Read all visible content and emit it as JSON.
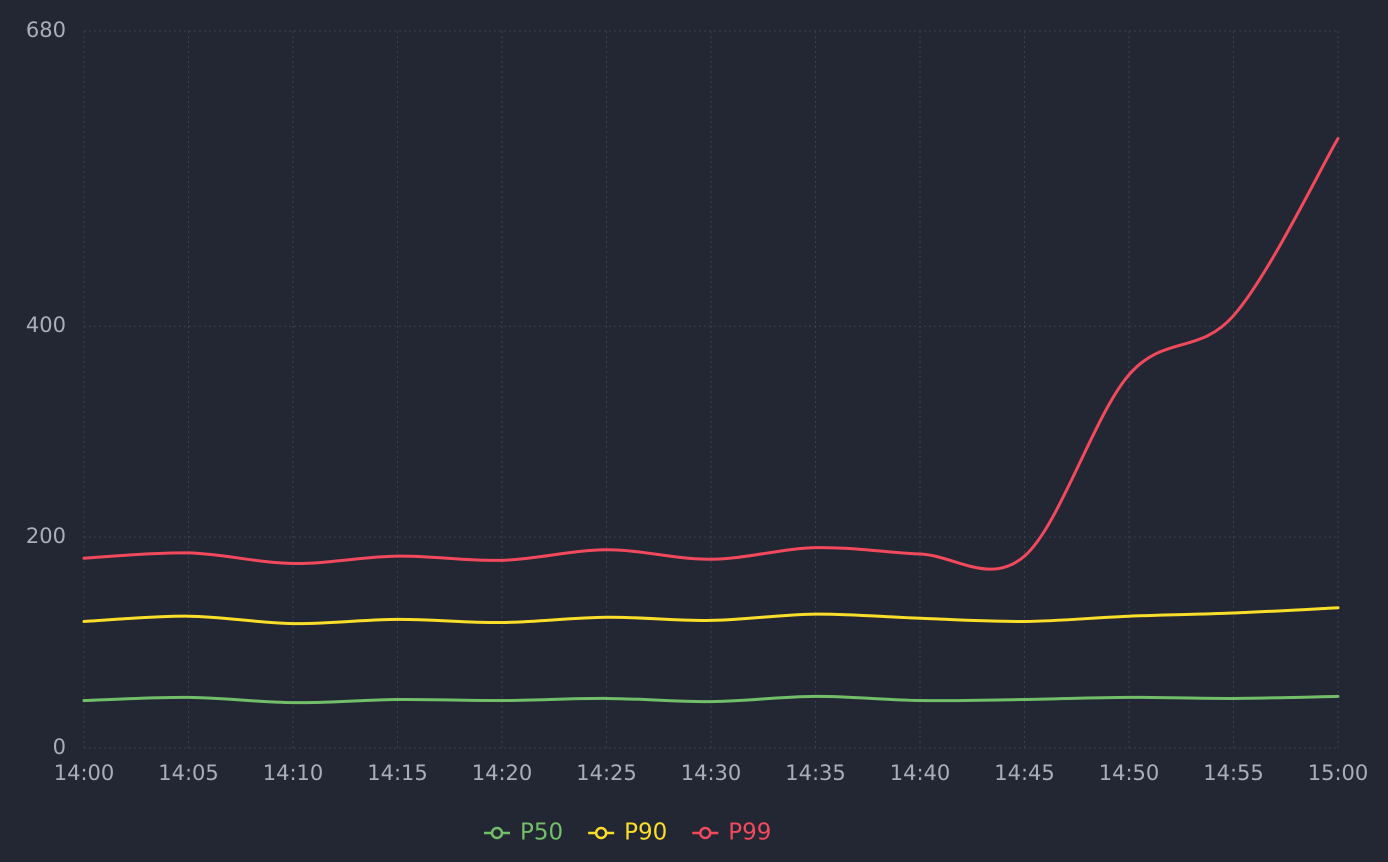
{
  "chart_data": {
    "type": "line",
    "categories": [
      "14:00",
      "14:05",
      "14:10",
      "14:15",
      "14:20",
      "14:25",
      "14:30",
      "14:35",
      "14:40",
      "14:45",
      "14:50",
      "14:55",
      "15:00"
    ],
    "series": [
      {
        "name": "P50",
        "color": "#73bf69",
        "values": [
          45,
          48,
          43,
          46,
          45,
          47,
          44,
          49,
          45,
          46,
          48,
          47,
          49
        ]
      },
      {
        "name": "P90",
        "color": "#fade2a",
        "values": [
          120,
          125,
          118,
          122,
          119,
          124,
          121,
          127,
          123,
          120,
          125,
          128,
          133
        ]
      },
      {
        "name": "P99",
        "color": "#f2495c",
        "values": [
          180,
          185,
          175,
          182,
          178,
          188,
          179,
          190,
          184,
          182,
          354,
          410,
          578
        ]
      }
    ],
    "ylim": [
      0,
      680
    ],
    "yticks": [
      0,
      200,
      400,
      680
    ],
    "grid": true,
    "legend": "bottom"
  }
}
